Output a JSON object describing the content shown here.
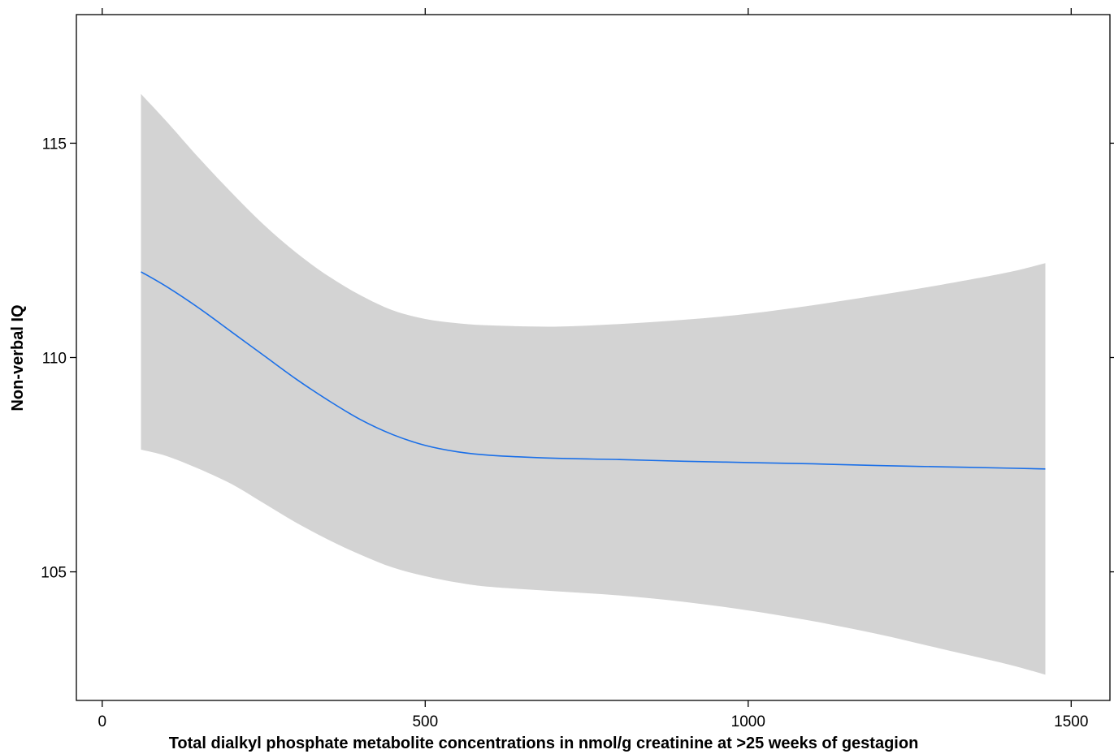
{
  "chart_data": {
    "type": "line",
    "title": "",
    "xlabel": "Total dialkyl phosphate metabolite concentrations in nmol/g creatinine at >25 weeks of gestagion",
    "ylabel": "Non-verbal IQ",
    "xlim": [
      -40,
      1560
    ],
    "ylim": [
      102.0,
      118.0
    ],
    "x_ticks": [
      0,
      500,
      1000,
      1500
    ],
    "x_tick_labels": [
      "0",
      "500",
      "1000",
      "1500"
    ],
    "y_ticks": [
      105,
      110,
      115
    ],
    "y_tick_labels": [
      "105",
      "110",
      "115"
    ],
    "grid": false,
    "legend": "none",
    "colors": {
      "line": "#1a6fe8",
      "band": "#d3d3d3",
      "axis": "#000000"
    },
    "series": [
      {
        "x": [
          60,
          100,
          150,
          200,
          250,
          300,
          350,
          400,
          450,
          500,
          550,
          600,
          700,
          800,
          900,
          1000,
          1100,
          1200,
          1300,
          1400,
          1460
        ],
        "y": [
          112.0,
          111.65,
          111.15,
          110.6,
          110.05,
          109.5,
          109.0,
          108.55,
          108.2,
          107.95,
          107.8,
          107.72,
          107.65,
          107.62,
          107.58,
          107.55,
          107.52,
          107.48,
          107.45,
          107.42,
          107.4
        ],
        "lower": [
          107.85,
          107.7,
          107.4,
          107.05,
          106.6,
          106.15,
          105.75,
          105.4,
          105.1,
          104.9,
          104.75,
          104.65,
          104.55,
          104.45,
          104.3,
          104.1,
          103.85,
          103.55,
          103.2,
          102.85,
          102.6
        ],
        "upper": [
          116.15,
          115.5,
          114.65,
          113.85,
          113.1,
          112.45,
          111.9,
          111.45,
          111.1,
          110.9,
          110.8,
          110.75,
          110.72,
          110.78,
          110.88,
          111.02,
          111.22,
          111.45,
          111.7,
          111.98,
          112.2
        ]
      }
    ]
  }
}
